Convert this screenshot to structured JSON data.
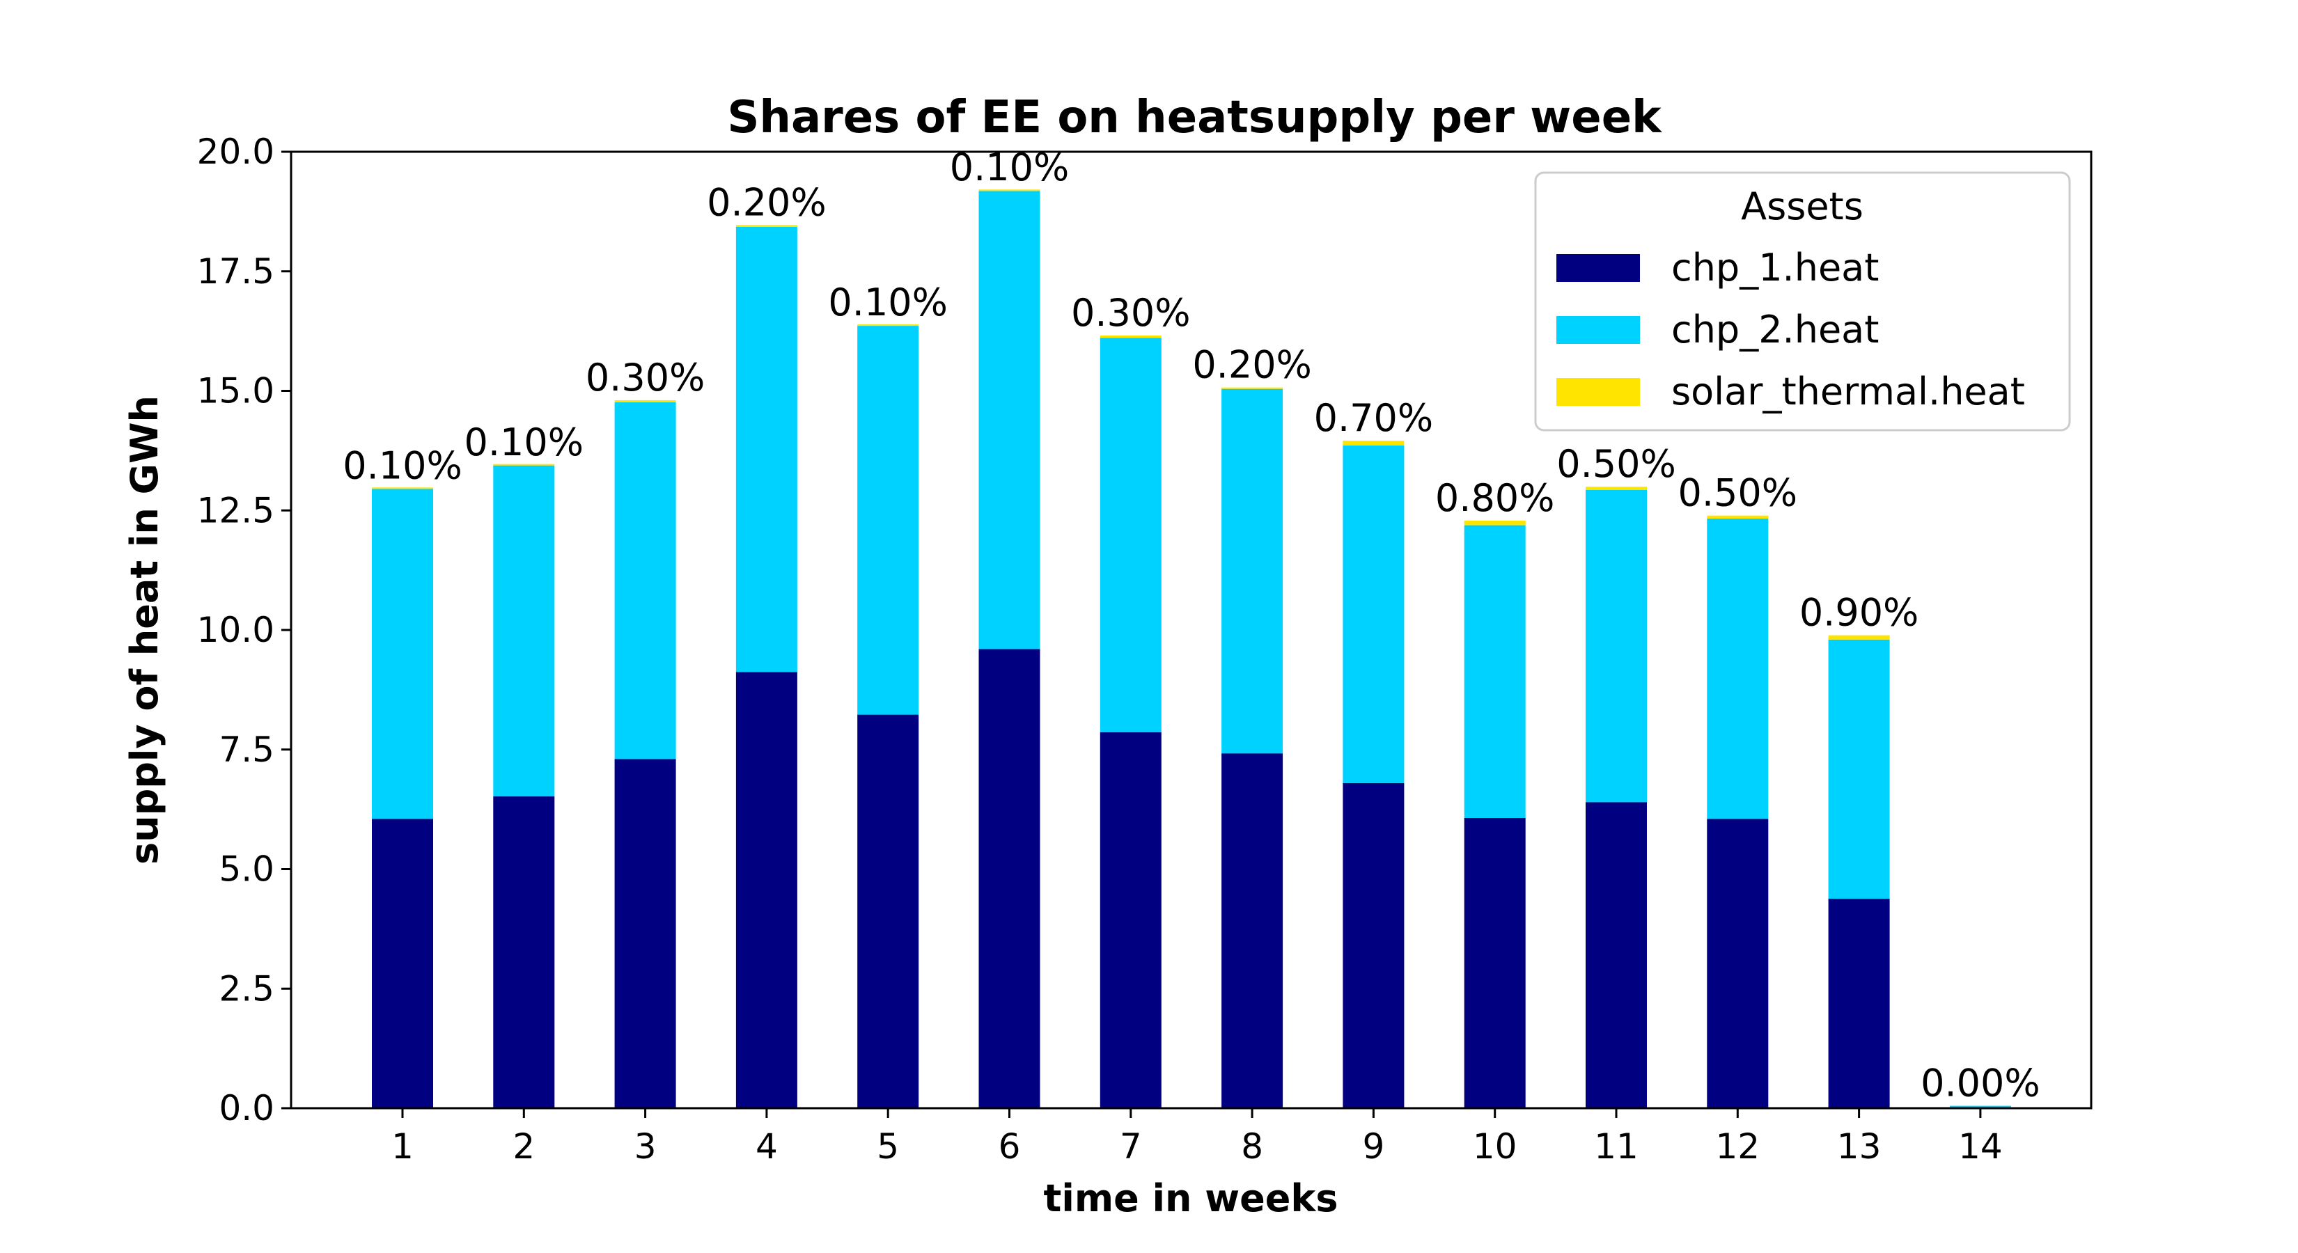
{
  "chart_data": {
    "type": "bar",
    "stacked": true,
    "title": "Shares of EE on heatsupply per week",
    "xlabel": "time in weeks",
    "ylabel": "supply of heat in GWh",
    "ylim": [
      0,
      20
    ],
    "yticks": [
      "0.0",
      "2.5",
      "5.0",
      "7.5",
      "10.0",
      "12.5",
      "15.0",
      "17.5",
      "20.0"
    ],
    "categories": [
      "1",
      "2",
      "3",
      "4",
      "5",
      "6",
      "7",
      "8",
      "9",
      "10",
      "11",
      "12",
      "13",
      "14"
    ],
    "series": [
      {
        "name": "chp_1.heat",
        "color": "#000080",
        "values": [
          6.05,
          6.52,
          7.3,
          9.12,
          8.23,
          9.6,
          7.86,
          7.42,
          6.8,
          6.07,
          6.4,
          6.05,
          4.38,
          0.0
        ]
      },
      {
        "name": "chp_2.heat",
        "color": "#00d2ff",
        "values": [
          6.9,
          6.92,
          7.46,
          9.31,
          8.13,
          9.58,
          8.25,
          7.62,
          7.06,
          6.12,
          6.53,
          6.28,
          5.42,
          0.05
        ]
      },
      {
        "name": "solar_thermal.heat",
        "color": "#ffe400",
        "values": [
          0.013,
          0.013,
          0.044,
          0.037,
          0.016,
          0.019,
          0.048,
          0.03,
          0.097,
          0.098,
          0.065,
          0.062,
          0.089,
          0.0
        ]
      }
    ],
    "bar_labels": [
      "0.10%",
      "0.10%",
      "0.30%",
      "0.20%",
      "0.10%",
      "0.10%",
      "0.30%",
      "0.20%",
      "0.70%",
      "0.80%",
      "0.50%",
      "0.50%",
      "0.90%",
      "0.00%"
    ],
    "legend": {
      "title": "Assets",
      "placement": "upper-right"
    },
    "grid": false
  }
}
